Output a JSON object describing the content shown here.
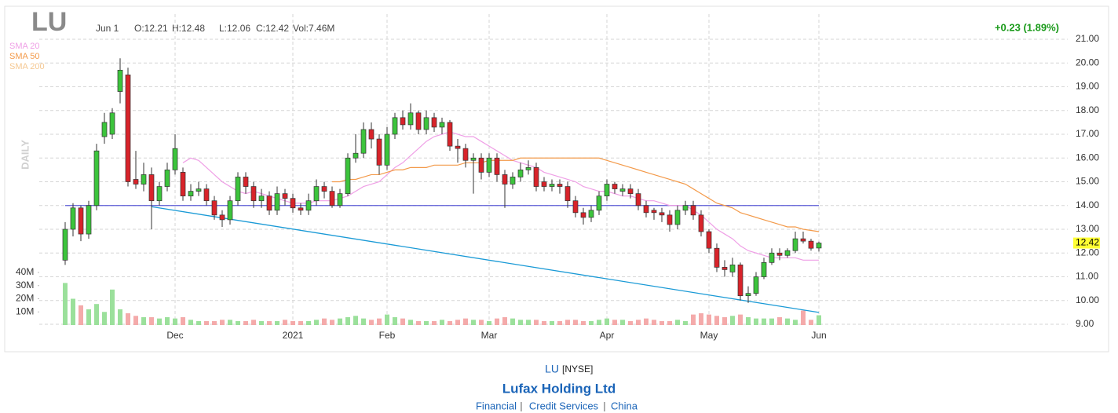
{
  "chart_data": {
    "type": "candlestick",
    "ticker": "LU",
    "header": {
      "date": "Jun 1",
      "open": "O:12.21",
      "high": "H:12.48",
      "low": "L:12.06",
      "close": "C:12.42",
      "volume": "Vol:7.46M"
    },
    "change": "+0.23 (1.89%)",
    "timeframe": "DAILY",
    "categories": [
      null,
      null,
      null,
      null,
      null,
      null,
      null,
      null,
      null,
      null,
      null,
      null,
      null,
      null,
      "Dec",
      null,
      null,
      null,
      null,
      null,
      null,
      null,
      null,
      null,
      null,
      null,
      null,
      null,
      null,
      "2021",
      null,
      null,
      null,
      null,
      null,
      null,
      null,
      null,
      null,
      null,
      null,
      "Feb",
      null,
      null,
      null,
      null,
      null,
      null,
      null,
      null,
      null,
      null,
      null,
      null,
      "Mar",
      null,
      null,
      null,
      null,
      null,
      null,
      null,
      null,
      null,
      null,
      null,
      null,
      null,
      null,
      "Apr",
      null,
      null,
      null,
      null,
      null,
      null,
      null,
      null,
      null,
      null,
      null,
      null,
      "May",
      null,
      null,
      null,
      null,
      null,
      null,
      null,
      null,
      null,
      null,
      null,
      null,
      null,
      "Jun"
    ],
    "open": [
      11.7,
      13.0,
      13.9,
      12.8,
      14.0,
      16.9,
      17.0,
      18.8,
      19.5,
      15.1,
      14.9,
      15.3,
      14.2,
      14.8,
      15.5,
      15.4,
      14.4,
      14.6,
      14.7,
      14.2,
      13.6,
      13.4,
      14.2,
      15.2,
      14.8,
      14.2,
      14.4,
      13.8,
      14.5,
      14.3,
      13.9,
      13.8,
      14.2,
      14.8,
      14.6,
      14.0,
      14.5,
      16.0,
      16.2,
      17.2,
      16.8,
      15.7,
      17.0,
      17.7,
      17.4,
      17.9,
      17.2,
      17.7,
      17.3,
      17.5,
      16.5,
      16.4,
      15.9,
      16.0,
      15.4,
      16.0,
      15.3,
      14.9,
      15.2,
      15.5,
      15.6,
      15.0,
      14.8,
      14.9,
      14.8,
      14.2,
      13.7,
      13.5,
      13.8,
      14.4,
      14.9,
      14.6,
      14.7,
      14.5,
      14.0,
      13.8,
      13.7,
      13.6,
      13.2,
      13.8,
      14.0,
      13.6,
      12.9,
      12.2,
      11.4,
      11.2,
      11.5,
      10.2,
      10.3,
      11.0,
      11.6,
      12.0,
      11.9,
      12.1,
      12.6,
      12.5,
      12.21
    ],
    "high": [
      13.3,
      14.1,
      14.0,
      14.2,
      16.6,
      17.9,
      18.1,
      20.2,
      19.8,
      16.3,
      15.8,
      15.6,
      15.0,
      15.8,
      17.0,
      15.6,
      14.9,
      15.0,
      14.9,
      14.4,
      13.8,
      14.4,
      15.4,
      15.4,
      15.0,
      14.7,
      14.6,
      14.8,
      14.7,
      14.5,
      14.1,
      14.5,
      15.1,
      15.0,
      14.8,
      14.7,
      16.2,
      17.0,
      17.5,
      17.5,
      17.0,
      17.3,
      17.9,
      18.0,
      18.3,
      18.0,
      18.0,
      17.9,
      17.7,
      17.6,
      16.8,
      16.6,
      16.2,
      16.2,
      16.2,
      16.2,
      15.5,
      15.4,
      15.8,
      15.9,
      15.8,
      15.2,
      15.1,
      15.1,
      15.0,
      14.4,
      13.9,
      14.0,
      14.6,
      15.1,
      15.0,
      14.9,
      14.9,
      14.7,
      14.2,
      13.9,
      13.9,
      13.8,
      14.0,
      14.2,
      14.2,
      13.8,
      13.0,
      12.4,
      11.7,
      11.8,
      11.6,
      10.6,
      11.2,
      11.8,
      12.2,
      12.2,
      12.2,
      12.9,
      12.9,
      12.6,
      12.48
    ],
    "low": [
      11.5,
      12.7,
      12.5,
      12.6,
      13.8,
      16.6,
      16.8,
      18.3,
      14.8,
      14.7,
      14.6,
      13.0,
      14.0,
      14.6,
      15.3,
      14.2,
      14.2,
      14.4,
      14.0,
      13.4,
      13.1,
      13.2,
      14.0,
      14.5,
      13.9,
      13.9,
      13.6,
      13.6,
      14.0,
      13.7,
      13.6,
      13.6,
      14.0,
      14.3,
      13.9,
      13.9,
      14.4,
      15.8,
      16.0,
      16.4,
      15.3,
      15.5,
      16.8,
      17.2,
      17.2,
      17.0,
      17.0,
      17.1,
      17.0,
      16.3,
      15.8,
      15.6,
      14.5,
      15.1,
      15.2,
      15.0,
      13.9,
      14.7,
      15.0,
      15.3,
      14.6,
      14.6,
      14.6,
      14.5,
      13.9,
      13.5,
      13.2,
      13.3,
      13.6,
      14.2,
      14.5,
      14.4,
      14.3,
      13.8,
      13.5,
      13.4,
      13.3,
      12.9,
      13.0,
      13.6,
      13.4,
      12.7,
      12.0,
      11.2,
      11.0,
      11.0,
      10.0,
      9.9,
      10.2,
      10.9,
      11.5,
      11.7,
      11.8,
      12.0,
      12.4,
      12.1,
      12.06
    ],
    "close": [
      13.0,
      13.9,
      12.8,
      14.0,
      16.3,
      17.5,
      17.9,
      19.7,
      15.0,
      14.9,
      15.3,
      14.2,
      14.8,
      15.5,
      16.4,
      14.4,
      14.6,
      14.7,
      14.2,
      13.6,
      13.4,
      14.2,
      15.2,
      14.8,
      14.2,
      14.4,
      13.8,
      14.5,
      14.3,
      13.9,
      13.8,
      14.2,
      14.8,
      14.6,
      14.0,
      14.5,
      16.0,
      16.2,
      17.2,
      16.8,
      15.7,
      17.0,
      17.7,
      17.4,
      17.9,
      17.2,
      17.7,
      17.3,
      17.5,
      16.5,
      16.4,
      15.9,
      16.0,
      15.4,
      16.0,
      15.3,
      14.9,
      15.2,
      15.5,
      15.6,
      14.8,
      14.8,
      14.9,
      14.8,
      14.2,
      13.7,
      13.5,
      13.8,
      14.4,
      14.9,
      14.7,
      14.7,
      14.5,
      14.0,
      13.7,
      13.7,
      13.6,
      13.2,
      13.8,
      14.0,
      13.6,
      12.9,
      12.2,
      11.4,
      11.3,
      11.5,
      10.2,
      10.3,
      11.0,
      11.6,
      12.0,
      11.9,
      12.1,
      12.6,
      12.5,
      12.2,
      12.42
    ],
    "volume": [
      32,
      20,
      15,
      12,
      16,
      10,
      27,
      12,
      9,
      7,
      6,
      6,
      5,
      6,
      5,
      6,
      4,
      3,
      3,
      3,
      4,
      4,
      3,
      3,
      4,
      3,
      3,
      3,
      4,
      3,
      3,
      3,
      4,
      5,
      4,
      5,
      6,
      7,
      5,
      4,
      5,
      8,
      6,
      5,
      4,
      3,
      3,
      3,
      4,
      3,
      4,
      5,
      4,
      4,
      3,
      5,
      6,
      5,
      4,
      4,
      4,
      3,
      3,
      3,
      4,
      4,
      3,
      3,
      4,
      5,
      4,
      4,
      3,
      4,
      5,
      4,
      3,
      3,
      4,
      3,
      8,
      9,
      8,
      7,
      6,
      7,
      8,
      6,
      5,
      5,
      5,
      6,
      5,
      4,
      11,
      4,
      7.46
    ],
    "up_color": "#3cc43c",
    "down_color": "#d8232a",
    "up_volume_color": "#9be09b",
    "down_volume_color": "#f4aaaa",
    "ylim": [
      9,
      21
    ],
    "yticks": [
      {
        "value": 9,
        "label": "9.00"
      },
      {
        "value": 10,
        "label": "10.00"
      },
      {
        "value": 11,
        "label": "11.00"
      },
      {
        "value": 12,
        "label": "12.00"
      },
      {
        "value": 13,
        "label": "13.00"
      },
      {
        "value": 14,
        "label": "14.00"
      },
      {
        "value": 15,
        "label": "15.00"
      },
      {
        "value": 16,
        "label": "16.00"
      },
      {
        "value": 17,
        "label": "17.00"
      },
      {
        "value": 18,
        "label": "18.00"
      },
      {
        "value": 19,
        "label": "19.00"
      },
      {
        "value": 20,
        "label": "20.00"
      },
      {
        "value": 21,
        "label": "21.00"
      }
    ],
    "volume_ylim": [
      0,
      40
    ],
    "volume_ticks": [
      {
        "value": 10,
        "label": "10M"
      },
      {
        "value": 20,
        "label": "20M"
      },
      {
        "value": 30,
        "label": "30M"
      },
      {
        "value": 40,
        "label": "40M"
      }
    ],
    "grid": true,
    "series": [
      {
        "name": "SMA 20",
        "color": "#ef9fe6",
        "values": [
          null,
          null,
          null,
          null,
          null,
          null,
          null,
          null,
          null,
          null,
          null,
          null,
          null,
          null,
          null,
          15.8,
          16.0,
          15.9,
          15.6,
          15.3,
          15.0,
          14.8,
          14.6,
          14.5,
          14.6,
          14.5,
          14.4,
          14.3,
          14.2,
          14.1,
          14.1,
          14.1,
          14.2,
          14.2,
          14.2,
          14.3,
          14.4,
          14.6,
          14.8,
          14.9,
          15.0,
          15.3,
          15.6,
          15.8,
          16.1,
          16.4,
          16.7,
          16.9,
          17.0,
          17.1,
          17.0,
          16.9,
          16.9,
          16.7,
          16.5,
          16.3,
          16.1,
          15.9,
          15.8,
          15.7,
          15.6,
          15.4,
          15.3,
          15.2,
          15.1,
          15.0,
          14.8,
          14.7,
          14.6,
          14.6,
          14.5,
          14.4,
          14.4,
          14.3,
          14.2,
          14.2,
          14.1,
          14.0,
          14.0,
          14.0,
          13.8,
          13.6,
          13.3,
          13.0,
          12.8,
          12.6,
          12.3,
          12.1,
          12.0,
          11.9,
          11.8,
          11.8,
          11.8,
          11.8,
          11.7,
          11.7,
          11.7
        ]
      },
      {
        "name": "SMA 50",
        "color": "#f39a4a",
        "values": [
          null,
          null,
          null,
          null,
          null,
          null,
          null,
          null,
          null,
          null,
          null,
          null,
          null,
          null,
          null,
          null,
          null,
          null,
          null,
          null,
          null,
          null,
          null,
          null,
          null,
          null,
          null,
          null,
          null,
          null,
          null,
          null,
          null,
          null,
          15.0,
          15.0,
          15.1,
          15.1,
          15.2,
          15.3,
          15.3,
          15.4,
          15.5,
          15.5,
          15.6,
          15.6,
          15.6,
          15.7,
          15.7,
          15.7,
          15.7,
          15.8,
          15.8,
          15.8,
          15.9,
          15.9,
          15.9,
          15.9,
          16.0,
          16.0,
          16.0,
          16.0,
          16.0,
          16.0,
          16.0,
          16.0,
          16.0,
          16.0,
          16.0,
          15.9,
          15.8,
          15.7,
          15.6,
          15.5,
          15.4,
          15.3,
          15.2,
          15.1,
          15.0,
          14.9,
          14.7,
          14.5,
          14.3,
          14.1,
          14.0,
          13.9,
          13.7,
          13.6,
          13.5,
          13.4,
          13.3,
          13.2,
          13.1,
          13.1,
          13.0,
          12.95,
          12.9
        ]
      },
      {
        "name": "SMA 200",
        "color": "#f5c892"
      }
    ],
    "trendlines": [
      {
        "color": "#5b5bd6",
        "from": {
          "x": 0,
          "y": 14.0
        },
        "to": {
          "x": 96,
          "y": 14.0
        }
      },
      {
        "color": "#1a9ad6",
        "from": {
          "x": 11,
          "y": 13.95
        },
        "to": {
          "x": 96,
          "y": 9.5
        }
      }
    ],
    "footer": {
      "ticker": "LU",
      "exchange": "[NYSE]",
      "name": "Lufax Holding Ltd",
      "sector": "Financial",
      "industry": "Credit Services",
      "country": "China"
    }
  }
}
